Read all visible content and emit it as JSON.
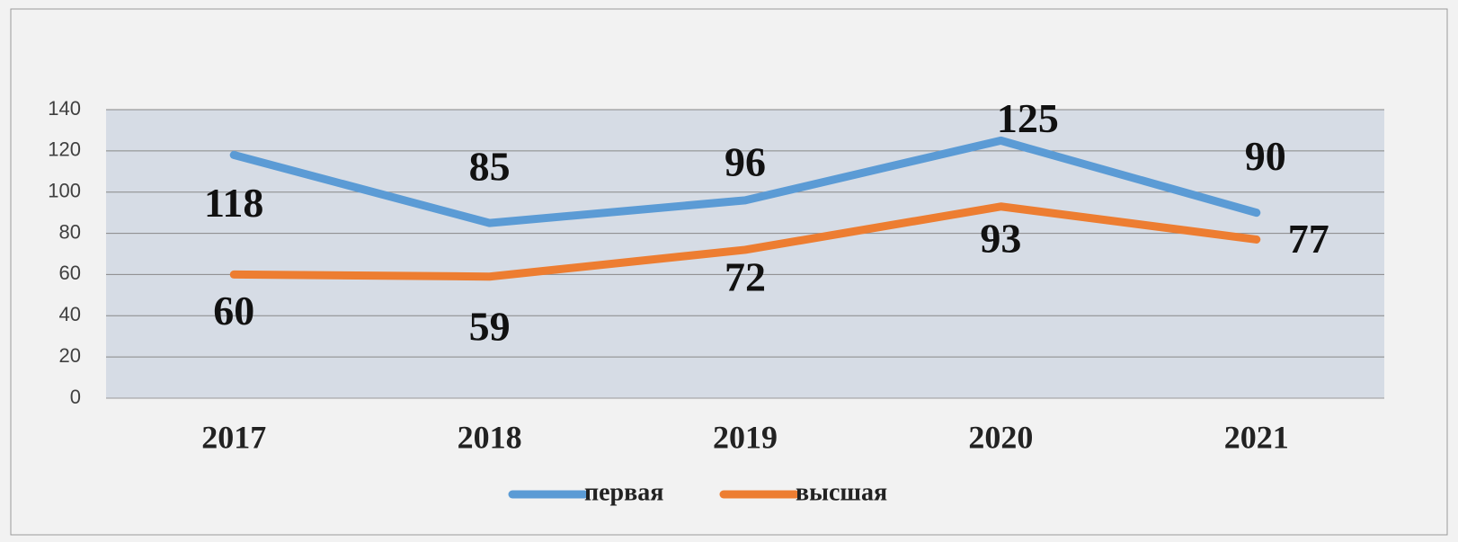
{
  "chart_data": {
    "type": "line",
    "categories": [
      "2017",
      "2018",
      "2019",
      "2020",
      "2021"
    ],
    "series": [
      {
        "name": "первая",
        "color": "#5b9bd5",
        "values": [
          118,
          85,
          96,
          125,
          90
        ]
      },
      {
        "name": "высшая",
        "color": "#ed7d31",
        "values": [
          60,
          59,
          72,
          93,
          77
        ]
      }
    ],
    "ylim": [
      0,
      140
    ],
    "yticks": [
      0,
      20,
      40,
      60,
      80,
      100,
      120,
      140
    ],
    "grid": true,
    "legend": "bottom"
  }
}
